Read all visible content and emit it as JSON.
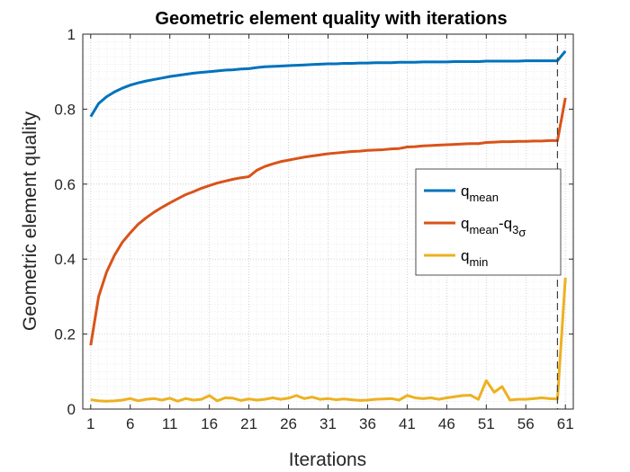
{
  "chart_data": {
    "type": "line",
    "title": "Geometric element quality with iterations",
    "xlabel": "Iterations",
    "ylabel": "Geometric element quality",
    "xlim": [
      0,
      62
    ],
    "ylim": [
      0,
      1
    ],
    "x_ticks": [
      1,
      6,
      11,
      16,
      21,
      26,
      31,
      36,
      41,
      46,
      51,
      56,
      61
    ],
    "y_ticks": [
      0,
      0.2,
      0.4,
      0.6,
      0.8,
      1
    ],
    "y_tick_labels": [
      "0",
      "0.2",
      "0.4",
      "0.6",
      "0.8",
      "1"
    ],
    "grid": "major-and-minor, dotted",
    "legend_position": "center-right",
    "vertical_marker_x": 60,
    "x": [
      1,
      2,
      3,
      4,
      5,
      6,
      7,
      8,
      9,
      10,
      11,
      12,
      13,
      14,
      15,
      16,
      17,
      18,
      19,
      20,
      21,
      22,
      23,
      24,
      25,
      26,
      27,
      28,
      29,
      30,
      31,
      32,
      33,
      34,
      35,
      36,
      37,
      38,
      39,
      40,
      41,
      42,
      43,
      44,
      45,
      46,
      47,
      48,
      49,
      50,
      51,
      52,
      53,
      54,
      55,
      56,
      57,
      58,
      59,
      60,
      61
    ],
    "series": [
      {
        "name_main": "q",
        "name_sub": "mean",
        "name_mid": "",
        "name_sub2": "",
        "name_sub3": "",
        "color": "#0072BD",
        "values": [
          0.78,
          0.815,
          0.833,
          0.846,
          0.856,
          0.864,
          0.87,
          0.875,
          0.879,
          0.883,
          0.887,
          0.89,
          0.893,
          0.896,
          0.898,
          0.9,
          0.902,
          0.904,
          0.905,
          0.907,
          0.908,
          0.911,
          0.913,
          0.914,
          0.915,
          0.916,
          0.917,
          0.918,
          0.919,
          0.92,
          0.921,
          0.921,
          0.922,
          0.922,
          0.923,
          0.923,
          0.924,
          0.924,
          0.924,
          0.925,
          0.925,
          0.925,
          0.926,
          0.926,
          0.926,
          0.926,
          0.927,
          0.927,
          0.927,
          0.927,
          0.928,
          0.928,
          0.928,
          0.928,
          0.928,
          0.929,
          0.929,
          0.929,
          0.929,
          0.929,
          0.955
        ]
      },
      {
        "name_main": "q",
        "name_sub": "mean",
        "name_mid": "-q",
        "name_sub2": "3",
        "name_sub3": "σ",
        "color": "#D95319",
        "values": [
          0.17,
          0.3,
          0.365,
          0.41,
          0.445,
          0.47,
          0.493,
          0.51,
          0.525,
          0.538,
          0.55,
          0.561,
          0.572,
          0.58,
          0.589,
          0.596,
          0.603,
          0.608,
          0.613,
          0.617,
          0.62,
          0.637,
          0.647,
          0.654,
          0.66,
          0.664,
          0.668,
          0.672,
          0.675,
          0.678,
          0.681,
          0.683,
          0.685,
          0.687,
          0.688,
          0.69,
          0.691,
          0.692,
          0.694,
          0.695,
          0.699,
          0.7,
          0.702,
          0.703,
          0.704,
          0.705,
          0.706,
          0.707,
          0.708,
          0.708,
          0.711,
          0.712,
          0.713,
          0.713,
          0.714,
          0.714,
          0.715,
          0.715,
          0.716,
          0.716,
          0.83
        ]
      },
      {
        "name_main": "q",
        "name_sub": "min",
        "name_mid": "",
        "name_sub2": "",
        "name_sub3": "",
        "color": "#EDB120",
        "values": [
          0.025,
          0.022,
          0.021,
          0.022,
          0.024,
          0.028,
          0.022,
          0.026,
          0.028,
          0.024,
          0.029,
          0.021,
          0.028,
          0.024,
          0.026,
          0.036,
          0.022,
          0.03,
          0.029,
          0.023,
          0.027,
          0.024,
          0.026,
          0.03,
          0.026,
          0.029,
          0.036,
          0.028,
          0.032,
          0.026,
          0.028,
          0.025,
          0.027,
          0.025,
          0.023,
          0.024,
          0.026,
          0.027,
          0.028,
          0.024,
          0.036,
          0.03,
          0.028,
          0.03,
          0.026,
          0.03,
          0.033,
          0.036,
          0.037,
          0.026,
          0.076,
          0.045,
          0.06,
          0.024,
          0.026,
          0.026,
          0.028,
          0.03,
          0.028,
          0.027,
          0.35
        ]
      }
    ]
  }
}
